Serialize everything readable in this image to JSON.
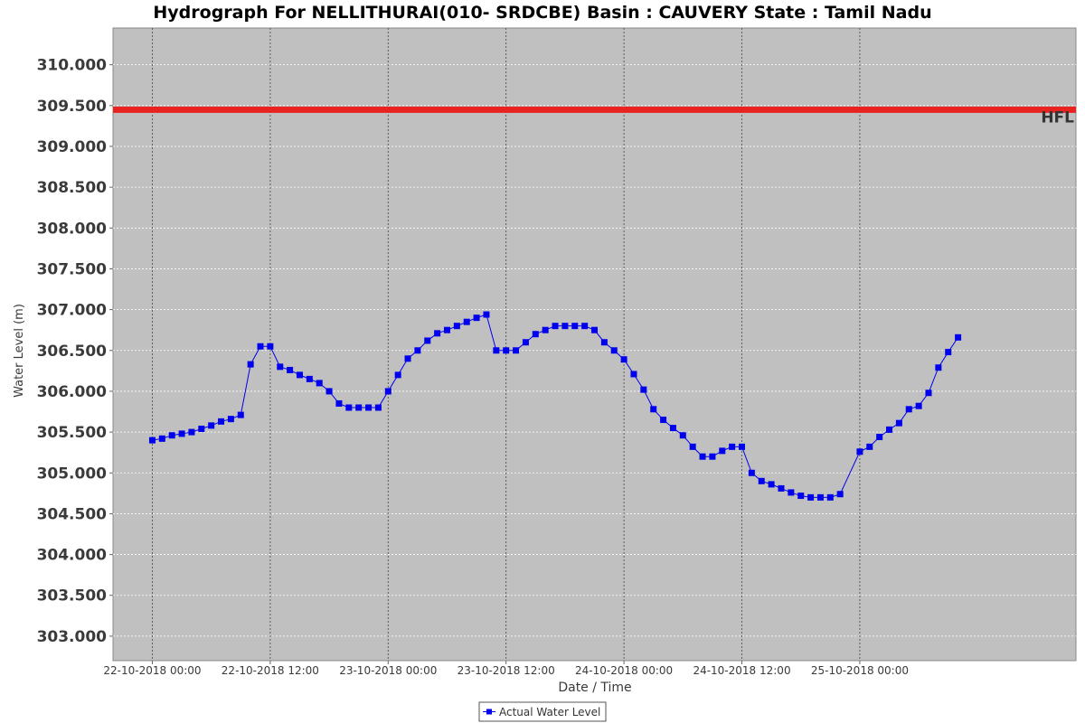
{
  "chart_data": {
    "type": "line",
    "title": "Hydrograph For NELLITHURAI(010- SRDCBE) Basin : CAUVERY State : Tamil Nadu",
    "xlabel": "Date / Time",
    "ylabel": "Water Level (m)",
    "ylim": [
      302.7,
      310.45
    ],
    "xlim_hours": [
      -4.0,
      94.0
    ],
    "y_ticks": [
      "303.000",
      "303.500",
      "304.000",
      "304.500",
      "305.000",
      "305.500",
      "306.000",
      "306.500",
      "307.000",
      "307.500",
      "308.000",
      "308.500",
      "309.000",
      "309.500",
      "310.000"
    ],
    "x_ticks": [
      {
        "label": "22-10-2018 00:00",
        "hour": 0
      },
      {
        "label": "22-10-2018 12:00",
        "hour": 12
      },
      {
        "label": "23-10-2018 00:00",
        "hour": 24
      },
      {
        "label": "23-10-2018 12:00",
        "hour": 36
      },
      {
        "label": "24-10-2018 00:00",
        "hour": 48
      },
      {
        "label": "24-10-2018 12:00",
        "hour": 60
      },
      {
        "label": "25-10-2018 00:00",
        "hour": 72
      }
    ],
    "grid": true,
    "legend_position": "bottom-center",
    "reference_line": {
      "label": "HFL",
      "value": 309.45,
      "color": "#e8231f"
    },
    "series": [
      {
        "name": "Actual Water Level",
        "color": "#0000ee",
        "marker": "square",
        "x": [
          0,
          1,
          2,
          3,
          4,
          5,
          6,
          7,
          8,
          9,
          10,
          11,
          12,
          13,
          14,
          15,
          16,
          17,
          18,
          19,
          20,
          21,
          22,
          23,
          24,
          25,
          26,
          27,
          28,
          29,
          30,
          31,
          32,
          33,
          34,
          35,
          36,
          37,
          38,
          39,
          40,
          41,
          42,
          43,
          44,
          45,
          46,
          47,
          48,
          49,
          50,
          51,
          52,
          53,
          54,
          55,
          56,
          57,
          58,
          59,
          60,
          61,
          62,
          63,
          64,
          65,
          66,
          67,
          68,
          69,
          70,
          72,
          73,
          74,
          75,
          76,
          77,
          78,
          79,
          80,
          81,
          82
        ],
        "y": [
          305.4,
          305.42,
          305.46,
          305.48,
          305.5,
          305.54,
          305.58,
          305.63,
          305.66,
          305.71,
          306.33,
          306.55,
          306.55,
          306.3,
          306.26,
          306.2,
          306.15,
          306.1,
          306.0,
          305.85,
          305.8,
          305.8,
          305.8,
          305.8,
          306.0,
          306.2,
          306.4,
          306.5,
          306.62,
          306.71,
          306.75,
          306.8,
          306.85,
          306.9,
          306.94,
          306.5,
          306.5,
          306.5,
          306.6,
          306.7,
          306.75,
          306.8,
          306.8,
          306.8,
          306.8,
          306.75,
          306.6,
          306.5,
          306.39,
          306.21,
          306.02,
          305.78,
          305.65,
          305.55,
          305.46,
          305.32,
          305.2,
          305.2,
          305.27,
          305.32,
          305.32,
          305.0,
          304.9,
          304.86,
          304.81,
          304.76,
          304.72,
          304.7,
          304.7,
          304.7,
          304.74,
          305.26,
          305.32,
          305.44,
          305.53,
          305.61,
          305.78,
          305.82,
          305.98,
          306.29,
          306.48,
          306.66
        ]
      }
    ]
  }
}
